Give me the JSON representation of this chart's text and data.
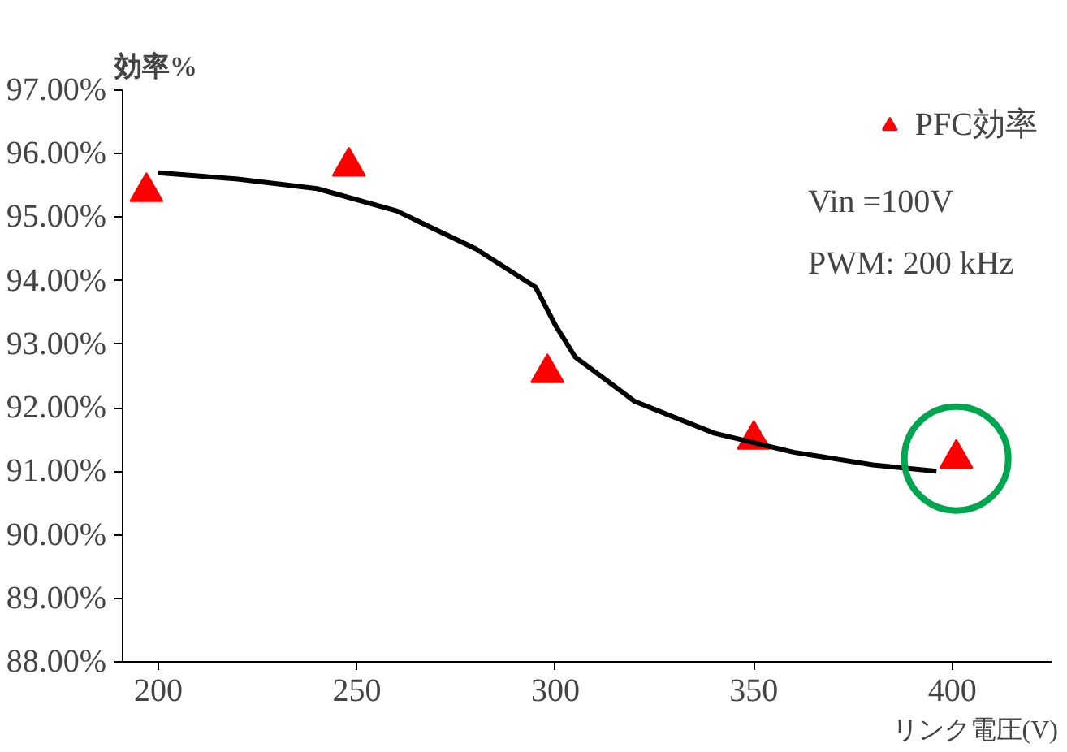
{
  "chart_data": {
    "type": "scatter",
    "ylabel": "効率%",
    "xlabel": "リンク電圧(V)",
    "xlim": [
      191,
      425
    ],
    "ylim": [
      88,
      97
    ],
    "xticks": [
      200,
      250,
      300,
      350,
      400
    ],
    "yticks": [
      {
        "value": 88,
        "label": "88.00%"
      },
      {
        "value": 89,
        "label": "89.00%"
      },
      {
        "value": 90,
        "label": "90.00%"
      },
      {
        "value": 91,
        "label": "91.00%"
      },
      {
        "value": 92,
        "label": "92.00%"
      },
      {
        "value": 93,
        "label": "93.00%"
      },
      {
        "value": 94,
        "label": "94.00%"
      },
      {
        "value": 95,
        "label": "95.00%"
      },
      {
        "value": 96,
        "label": "96.00%"
      },
      {
        "value": 97,
        "label": "97.00%"
      }
    ],
    "grid": false,
    "legend": "top right",
    "series": [
      {
        "name": "PFC効率",
        "marker": "triangle",
        "color": "#ff0000",
        "x": [
          197,
          248,
          298,
          350,
          401
        ],
        "values": [
          95.4,
          95.8,
          92.55,
          91.5,
          91.2
        ]
      },
      {
        "type": "line",
        "color": "#000000",
        "x": [
          200,
          220,
          240,
          260,
          280,
          295,
          300,
          305,
          320,
          340,
          360,
          380,
          396
        ],
        "values": [
          95.7,
          95.6,
          95.45,
          95.1,
          94.5,
          93.9,
          93.3,
          92.8,
          92.1,
          91.6,
          91.3,
          91.1,
          91.0
        ]
      },
      {
        "marker": "circle",
        "color": "#00a550",
        "x": [
          401
        ],
        "values": [
          91.2
        ]
      }
    ],
    "annotations": [
      "Vin =100V",
      "PWM: 200 kHz"
    ]
  }
}
